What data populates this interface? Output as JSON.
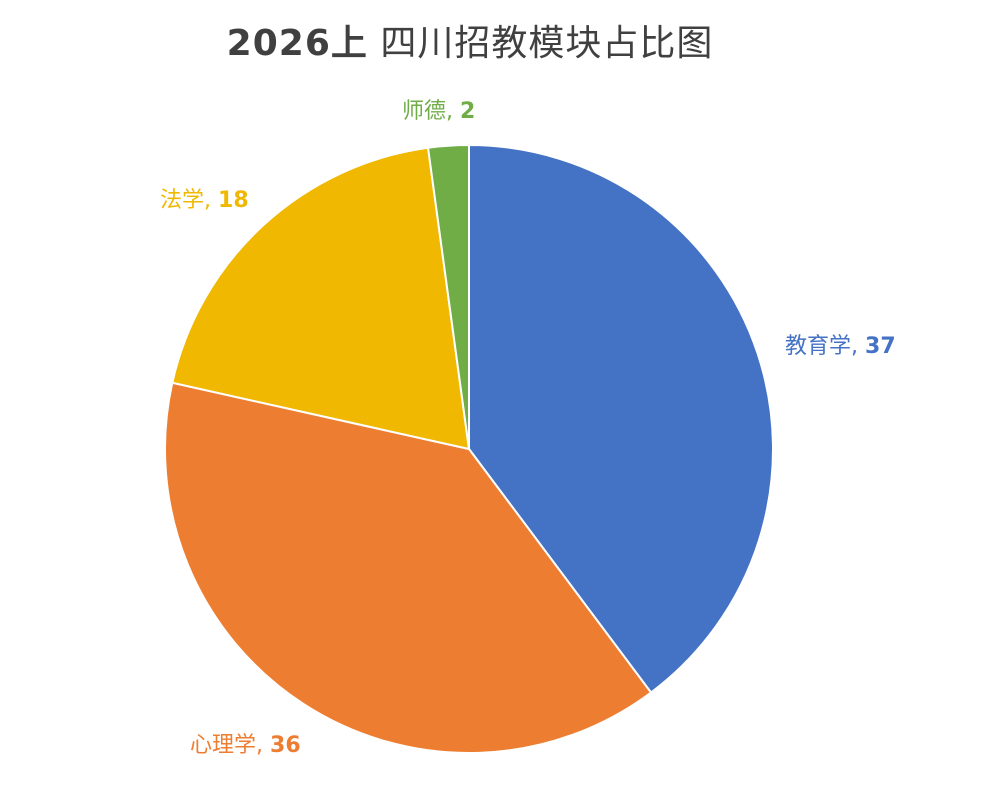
{
  "chart_data": {
    "type": "pie",
    "title": "2026上 四川招教模块占比图",
    "title_year": "2026上",
    "title_rest": " 四川招教模块占比图",
    "categories": [
      "教育学",
      "心理学",
      "法学",
      "师德"
    ],
    "values": [
      37,
      36,
      18,
      2
    ],
    "colors": [
      "#4472C4",
      "#ED7D31",
      "#F0B800",
      "#70AD47"
    ],
    "start_angle": "12 o'clock, clockwise",
    "data_labels": true,
    "legend": "none",
    "slices": [
      {
        "label": "教育学",
        "value": 37,
        "color": "#4472C4",
        "text": "教育学",
        "sep": ", ",
        "num": "37"
      },
      {
        "label": "心理学",
        "value": 36,
        "color": "#ED7D31",
        "text": "心理学",
        "sep": ", ",
        "num": "36"
      },
      {
        "label": "法学",
        "value": 18,
        "color": "#F0B800",
        "text": "法学",
        "sep": ", ",
        "num": "18"
      },
      {
        "label": "师德",
        "value": 2,
        "color": "#70AD47",
        "text": "师德",
        "sep": ", ",
        "num": "2"
      }
    ]
  }
}
